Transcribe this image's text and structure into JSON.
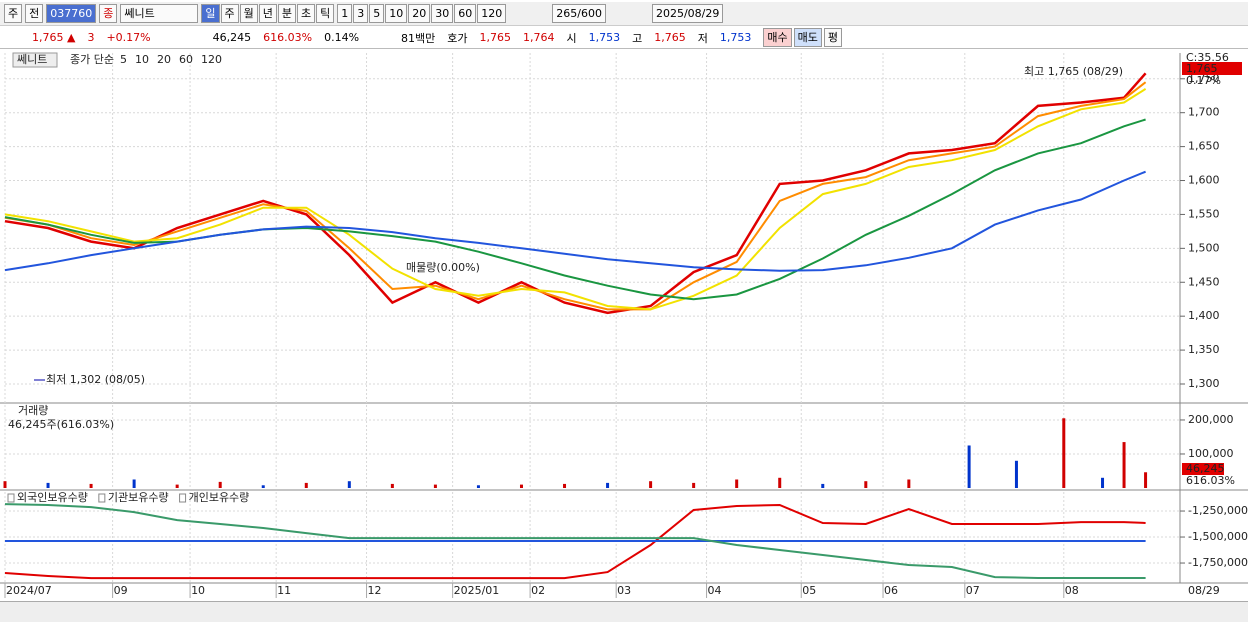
{
  "toolbar": {
    "market": "주",
    "scope": "전",
    "code": "037760",
    "kind": "종",
    "name": "쎄니트",
    "periods": [
      "일",
      "주",
      "월",
      "년",
      "분",
      "초",
      "틱"
    ],
    "intervals": [
      "1",
      "3",
      "5",
      "10",
      "20",
      "30",
      "60",
      "120"
    ],
    "count": "265",
    "max": "/600",
    "date": "2025/08/29"
  },
  "quote": {
    "price": "1,765 ▲",
    "change": "3",
    "rate": "+0.17%",
    "volume": "46,245",
    "volume_ratio": "616.03%",
    "turnover": "0.14%",
    "amount": "81백만",
    "bid_ask_label": "호가",
    "ask": "1,765",
    "bid": "1,764",
    "open_label": "시",
    "open": "1,753",
    "high_label": "고",
    "high": "1,765",
    "low_label": "저",
    "low": "1,753",
    "buy": "매수",
    "sell": "매도",
    "avg": "평"
  },
  "chart_data": [
    {
      "type": "line",
      "name_label": "쎄니트",
      "legend_title": "종가 단순",
      "corner_label": "C:35.56",
      "current_label": "1,765",
      "change_label": "0.17%",
      "annotations": [
        "최고 1,765 (08/29)",
        "최저 1,302 (08/05)",
        "매물량(0.00%)"
      ],
      "x": [
        0,
        10,
        20,
        30,
        40,
        50,
        60,
        70,
        80,
        90,
        100,
        110,
        120,
        130,
        140,
        150,
        160,
        170,
        180,
        190,
        200,
        210,
        220,
        230,
        240,
        250,
        260,
        265
      ],
      "xlim": [
        0,
        273
      ],
      "ylim": [
        1272,
        1788
      ],
      "yticks": [
        {
          "value": 1300,
          "label": "1,300"
        },
        {
          "value": 1350,
          "label": "1,350"
        },
        {
          "value": 1400,
          "label": "1,400"
        },
        {
          "value": 1450,
          "label": "1,450"
        },
        {
          "value": 1500,
          "label": "1,500"
        },
        {
          "value": 1550,
          "label": "1,550"
        },
        {
          "value": 1600,
          "label": "1,600"
        },
        {
          "value": 1650,
          "label": "1,650"
        },
        {
          "value": 1700,
          "label": "1,700"
        },
        {
          "value": 1750,
          "label": "1,750"
        }
      ],
      "grid": true,
      "series": [
        {
          "name": "5",
          "color": "#e00000",
          "values": [
            1540,
            1530,
            1510,
            1500,
            1530,
            1550,
            1570,
            1550,
            1490,
            1420,
            1450,
            1420,
            1450,
            1420,
            1405,
            1415,
            1465,
            1490,
            1595,
            1600,
            1615,
            1640,
            1645,
            1655,
            1710,
            1715,
            1722,
            1758
          ]
        },
        {
          "name": "10",
          "color": "#ff8c00",
          "values": [
            1545,
            1535,
            1515,
            1505,
            1525,
            1545,
            1565,
            1555,
            1500,
            1440,
            1445,
            1425,
            1445,
            1425,
            1410,
            1410,
            1450,
            1480,
            1570,
            1595,
            1605,
            1630,
            1640,
            1650,
            1695,
            1710,
            1720,
            1745
          ]
        },
        {
          "name": "20",
          "color": "#f2e200",
          "values": [
            1550,
            1540,
            1525,
            1510,
            1515,
            1535,
            1560,
            1560,
            1520,
            1470,
            1440,
            1430,
            1440,
            1435,
            1415,
            1410,
            1430,
            1460,
            1530,
            1580,
            1595,
            1620,
            1630,
            1645,
            1680,
            1705,
            1715,
            1735
          ]
        },
        {
          "name": "60",
          "color": "#1a9641",
          "values": [
            1546,
            1535,
            1520,
            1508,
            1510,
            1520,
            1528,
            1530,
            1525,
            1518,
            1510,
            1495,
            1478,
            1460,
            1445,
            1432,
            1425,
            1432,
            1455,
            1485,
            1520,
            1548,
            1580,
            1615,
            1640,
            1655,
            1680,
            1690
          ]
        },
        {
          "name": "120",
          "color": "#2255dd",
          "values": [
            1468,
            1478,
            1490,
            1500,
            1510,
            1520,
            1528,
            1532,
            1530,
            1524,
            1515,
            1508,
            1500,
            1492,
            1484,
            1478,
            1472,
            1469,
            1467,
            1468,
            1475,
            1486,
            1500,
            1535,
            1556,
            1572,
            1600,
            1613
          ]
        }
      ]
    },
    {
      "type": "bar",
      "title": "거래량",
      "subtitle": "46,245주(616.03%)",
      "last_label": "46,245",
      "last_ratio": "616.03%",
      "x": [
        0,
        10,
        20,
        30,
        40,
        50,
        60,
        70,
        80,
        90,
        100,
        110,
        120,
        130,
        140,
        150,
        160,
        170,
        180,
        190,
        200,
        210,
        224,
        235,
        246,
        255,
        260,
        265
      ],
      "values": [
        20000,
        15000,
        12000,
        25000,
        10000,
        18000,
        8000,
        15000,
        20000,
        12000,
        10000,
        8000,
        10000,
        12000,
        15000,
        20000,
        15000,
        25000,
        30000,
        12000,
        20000,
        25000,
        125000,
        80000,
        205000,
        30000,
        135000,
        46245
      ],
      "colors": [
        "#d00000",
        "#0033cc",
        "#d00000",
        "#0033cc",
        "#d00000",
        "#d00000",
        "#0033cc",
        "#d00000",
        "#0033cc",
        "#d00000",
        "#d00000",
        "#0033cc",
        "#d00000",
        "#d00000",
        "#0033cc",
        "#d00000",
        "#d00000",
        "#d00000",
        "#d00000",
        "#0033cc",
        "#d00000",
        "#d00000",
        "#0033cc",
        "#0033cc",
        "#d00000",
        "#0033cc",
        "#d00000",
        "#d00000"
      ],
      "xlim": [
        0,
        273
      ],
      "ylim": [
        0,
        244000
      ],
      "yticks": [
        {
          "value": 100000,
          "label": "100,000"
        },
        {
          "value": 200000,
          "label": "200,000"
        }
      ],
      "grid": true
    },
    {
      "type": "line",
      "x": [
        0,
        10,
        20,
        30,
        40,
        50,
        60,
        70,
        80,
        90,
        100,
        110,
        120,
        130,
        140,
        150,
        160,
        170,
        180,
        190,
        200,
        210,
        220,
        230,
        240,
        250,
        260,
        265
      ],
      "xlim": [
        0,
        273
      ],
      "ylim": [
        -1942000,
        -1067000
      ],
      "xticks": [
        {
          "value": 0,
          "label": "2024/07"
        },
        {
          "value": 25,
          "label": "09"
        },
        {
          "value": 43,
          "label": "10"
        },
        {
          "value": 63,
          "label": "11"
        },
        {
          "value": 84,
          "label": "12"
        },
        {
          "value": 104,
          "label": "2025/01"
        },
        {
          "value": 122,
          "label": "02"
        },
        {
          "value": 142,
          "label": "03"
        },
        {
          "value": 163,
          "label": "04"
        },
        {
          "value": 185,
          "label": "05"
        },
        {
          "value": 204,
          "label": "06"
        },
        {
          "value": 223,
          "label": "07"
        },
        {
          "value": 246,
          "label": "08"
        }
      ],
      "last_date_label": "08/29",
      "yticks": [
        {
          "value": -1250000,
          "label": "-1,250,000"
        },
        {
          "value": -1500000,
          "label": "-1,500,000"
        },
        {
          "value": -1750000,
          "label": "-1,750,000"
        }
      ],
      "grid": true,
      "series": [
        {
          "name": "외국인보유수량",
          "color": "#e00000",
          "values": [
            -1846000,
            -1875000,
            -1895000,
            -1895000,
            -1895000,
            -1895000,
            -1895000,
            -1895000,
            -1895000,
            -1895000,
            -1895000,
            -1895000,
            -1895000,
            -1895000,
            -1837000,
            -1577000,
            -1240000,
            -1202000,
            -1192000,
            -1365000,
            -1375000,
            -1231000,
            -1375000,
            -1375000,
            -1375000,
            -1356000,
            -1356000,
            -1365000
          ]
        },
        {
          "name": "기관보유수량",
          "color": "#2255dd",
          "values": [
            -1538000,
            -1538000,
            -1538000,
            -1538000,
            -1538000,
            -1538000,
            -1538000,
            -1538000,
            -1538000,
            -1538000,
            -1538000,
            -1538000,
            -1538000,
            -1538000,
            -1538000,
            -1538000,
            -1538000,
            -1538000,
            -1538000,
            -1538000,
            -1538000,
            -1538000,
            -1538000,
            -1538000,
            -1538000,
            -1538000,
            -1538000,
            -1538000
          ]
        },
        {
          "name": "개인보유수량",
          "color": "#3a9a6a",
          "values": [
            -1183000,
            -1192000,
            -1212000,
            -1260000,
            -1337000,
            -1375000,
            -1413000,
            -1462000,
            -1510000,
            -1510000,
            -1510000,
            -1510000,
            -1510000,
            -1510000,
            -1510000,
            -1510000,
            -1510000,
            -1577000,
            -1625000,
            -1673000,
            -1721000,
            -1769000,
            -1788000,
            -1885000,
            -1894000,
            -1894000,
            -1894000,
            -1894000
          ]
        }
      ]
    }
  ]
}
